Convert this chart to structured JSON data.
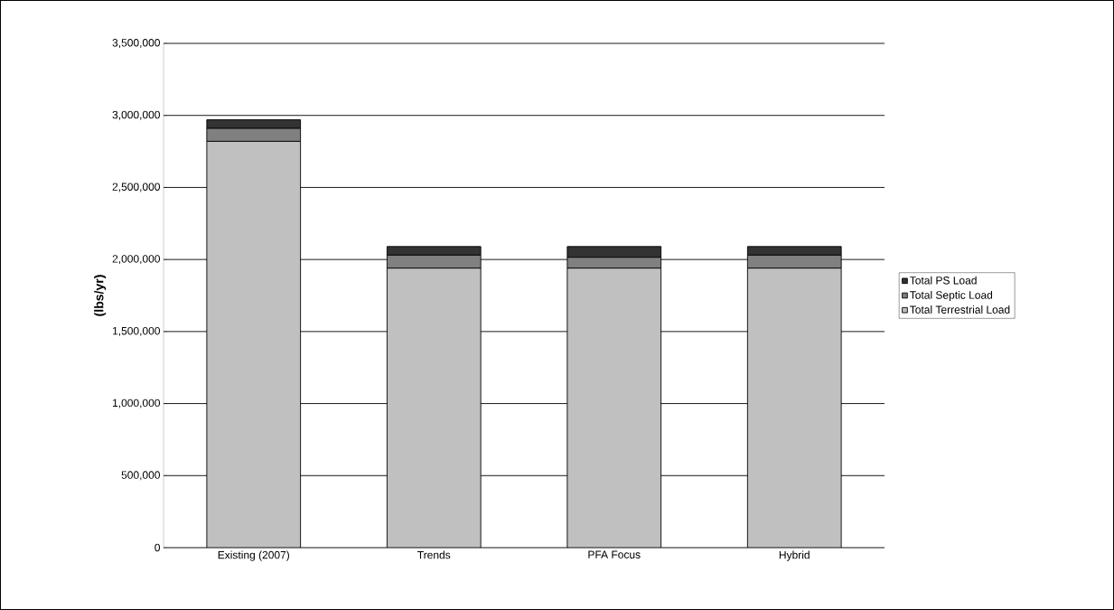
{
  "chart_data": {
    "type": "bar",
    "stacked": true,
    "ylabel": "(lbs/yr)",
    "categories": [
      "Existing (2007)",
      "Trends",
      "PFA Focus",
      "Hybrid"
    ],
    "series": [
      {
        "name": "Total Terrestrial Load",
        "color": "#c0c0c0",
        "values": [
          2820000,
          1940000,
          1940000,
          1940000
        ]
      },
      {
        "name": "Total Septic Load",
        "color": "#808080",
        "values": [
          90000,
          90000,
          75000,
          90000
        ]
      },
      {
        "name": "Total PS Load",
        "color": "#333333",
        "values": [
          60000,
          60000,
          75000,
          60000
        ]
      }
    ],
    "ylim": [
      0,
      3500000
    ],
    "yticks": [
      {
        "value": 0,
        "label": "0"
      },
      {
        "value": 500000,
        "label": "500,000"
      },
      {
        "value": 1000000,
        "label": "1,000,000"
      },
      {
        "value": 1500000,
        "label": "1,500,000"
      },
      {
        "value": 2000000,
        "label": "2,000,000"
      },
      {
        "value": 2500000,
        "label": "2,500,000"
      },
      {
        "value": 3000000,
        "label": "3,000,000"
      },
      {
        "value": 3500000,
        "label": "3,500,000"
      }
    ],
    "grid": "y",
    "legend": "right"
  }
}
